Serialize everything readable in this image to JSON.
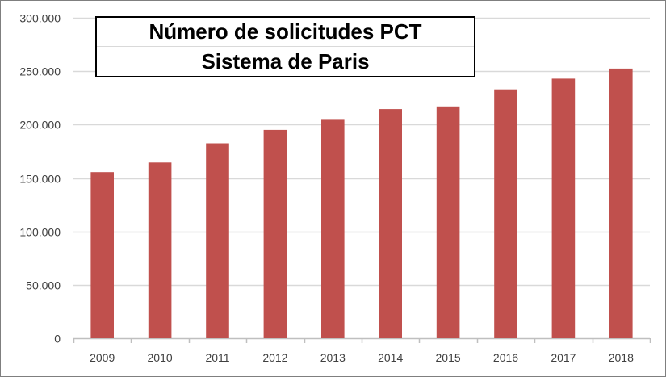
{
  "chart_data": {
    "type": "bar",
    "title_lines": [
      "Número de solicitudes PCT",
      "Sistema de Paris"
    ],
    "categories": [
      "2009",
      "2010",
      "2011",
      "2012",
      "2013",
      "2014",
      "2015",
      "2016",
      "2017",
      "2018"
    ],
    "series": [
      {
        "values": [
          155500,
          164500,
          182500,
          195000,
          204500,
          214500,
          217000,
          233000,
          243000,
          252500
        ]
      }
    ],
    "ylim": [
      0,
      300000
    ],
    "y_ticks": [
      0,
      50000,
      100000,
      150000,
      200000,
      250000,
      300000
    ],
    "y_tick_labels": [
      "0",
      "50.000",
      "100.000",
      "150.000",
      "200.000",
      "250.000",
      "300.000"
    ],
    "grid": true,
    "legend": "none",
    "bar_color": "#c0504d",
    "grid_color": "#d9d9d9",
    "axis_color": "#bfbfbf"
  }
}
